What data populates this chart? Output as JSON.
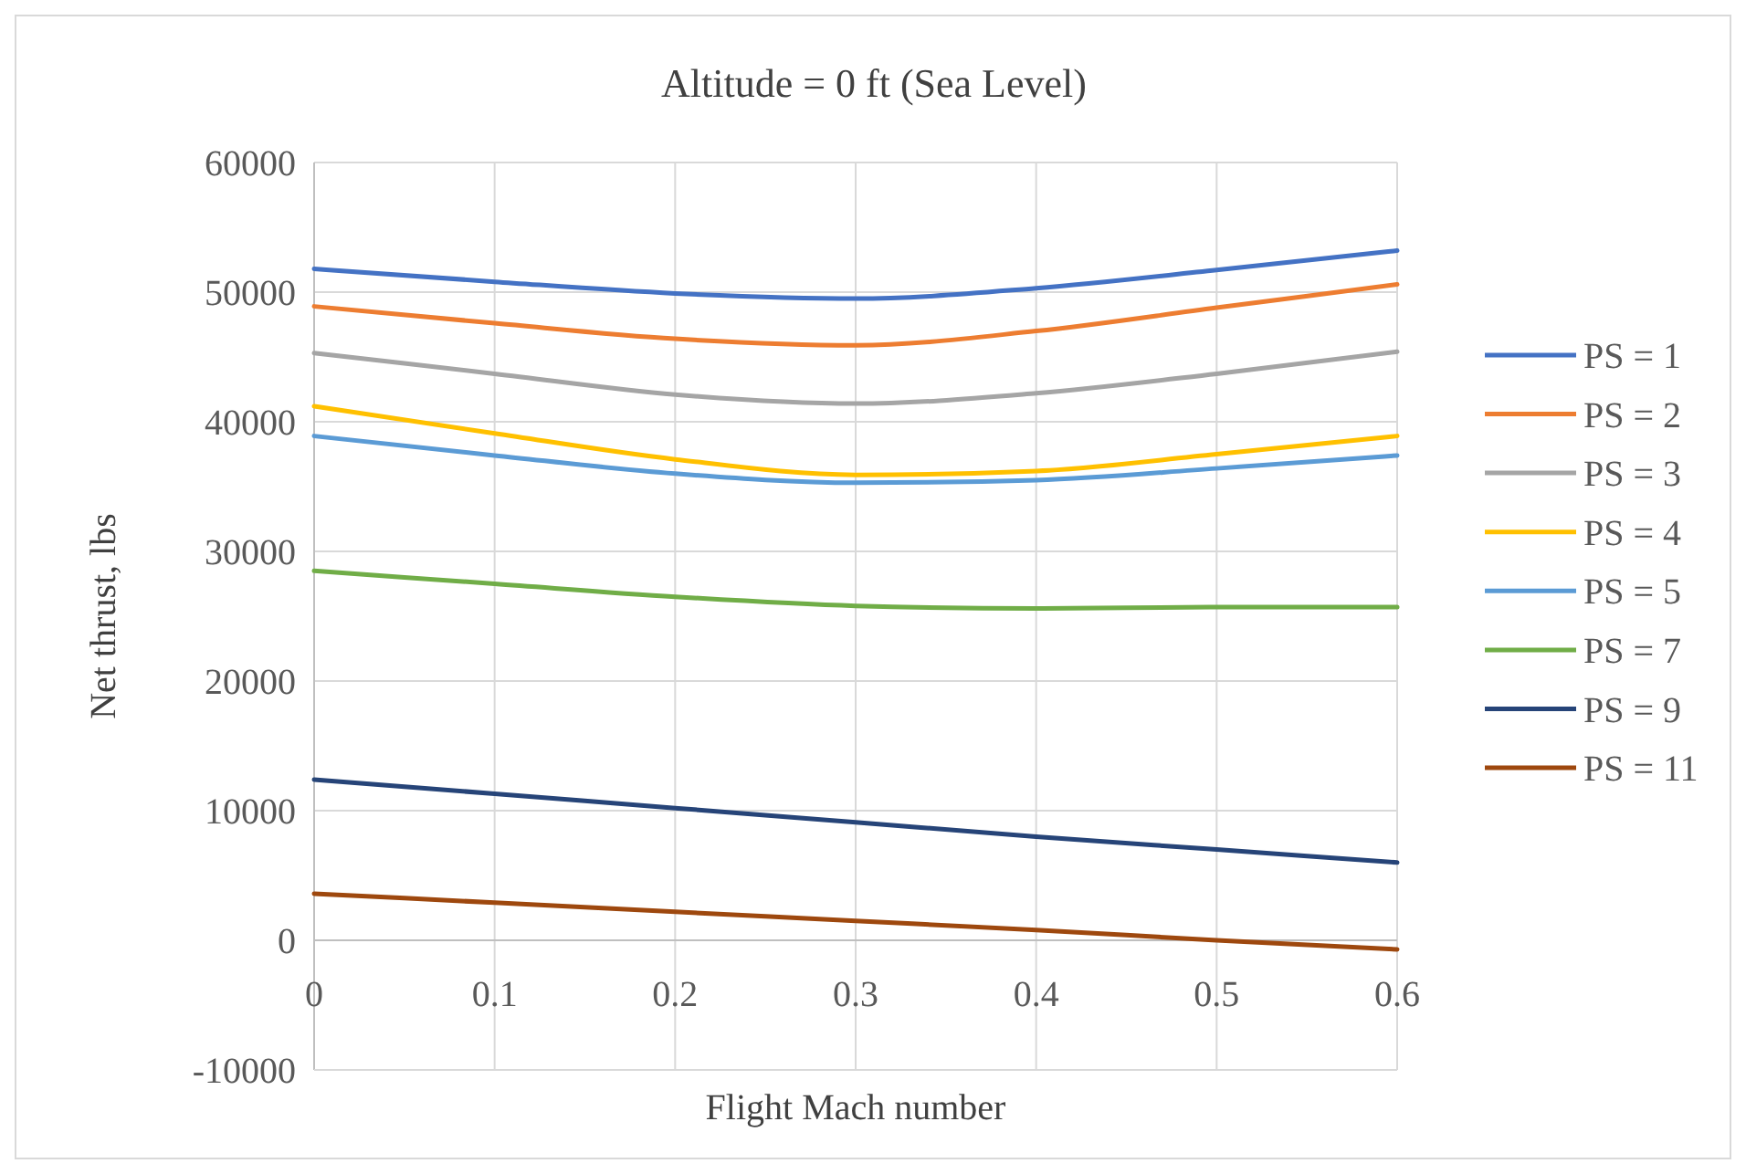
{
  "chart_data": {
    "type": "line",
    "title": "Altitude = 0 ft (Sea Level)",
    "xlabel": "Flight Mach number",
    "ylabel": "Net thrust, lbs",
    "x": [
      0,
      0.1,
      0.2,
      0.3,
      0.4,
      0.5,
      0.6
    ],
    "xlim": [
      0,
      0.6
    ],
    "xticks": [
      0,
      0.1,
      0.2,
      0.3,
      0.4,
      0.5,
      0.6
    ],
    "ylim": [
      -10000,
      60000
    ],
    "yticks": [
      -10000,
      0,
      10000,
      20000,
      30000,
      40000,
      50000,
      60000
    ],
    "grid": true,
    "legend": "right",
    "marker": "none",
    "line_style": "solid",
    "series": [
      {
        "name": "PS = 1",
        "color": "#4472c4",
        "values": [
          51800,
          50800,
          49900,
          49500,
          50300,
          51700,
          53200
        ]
      },
      {
        "name": "PS = 2",
        "color": "#ed7d31",
        "values": [
          48900,
          47600,
          46400,
          45900,
          47000,
          48800,
          50600
        ]
      },
      {
        "name": "PS = 3",
        "color": "#a5a5a5",
        "values": [
          45300,
          43700,
          42100,
          41400,
          42200,
          43700,
          45400
        ]
      },
      {
        "name": "PS = 4",
        "color": "#ffc000",
        "values": [
          41200,
          39100,
          37100,
          35900,
          36200,
          37500,
          38900
        ]
      },
      {
        "name": "PS = 5",
        "color": "#5b9bd5",
        "values": [
          38900,
          37400,
          36000,
          35300,
          35500,
          36400,
          37400
        ]
      },
      {
        "name": "PS = 7",
        "color": "#70ad47",
        "values": [
          28500,
          27500,
          26500,
          25800,
          25600,
          25700,
          25700
        ]
      },
      {
        "name": "PS = 9",
        "color": "#264478",
        "values": [
          12400,
          11300,
          10200,
          9100,
          8000,
          7000,
          6000
        ]
      },
      {
        "name": "PS = 11",
        "color": "#9e480e",
        "values": [
          3600,
          2900,
          2200,
          1500,
          800,
          0,
          -700
        ]
      }
    ]
  }
}
